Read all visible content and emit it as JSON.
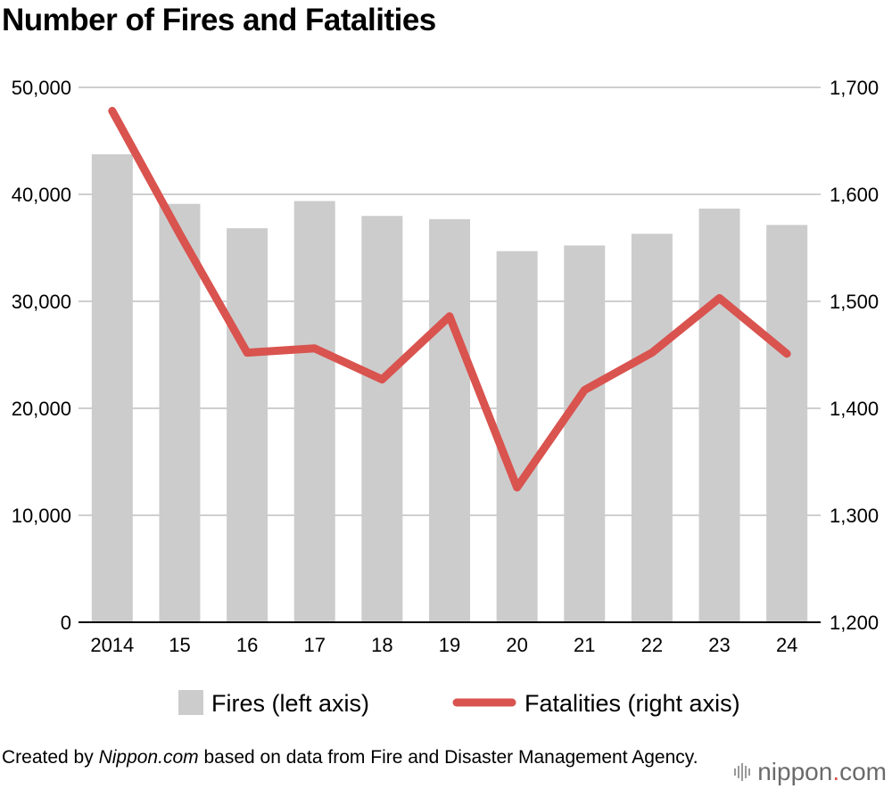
{
  "chart_data": {
    "type": "bar",
    "title": "Number of Fires and Fatalities",
    "categories": [
      "2014",
      "15",
      "16",
      "17",
      "18",
      "19",
      "20",
      "21",
      "22",
      "23",
      "24"
    ],
    "series": [
      {
        "name": "Fires (left axis)",
        "type": "bar",
        "axis": "left",
        "color": "#cccccc",
        "values": [
          43741,
          39111,
          36831,
          39373,
          37981,
          37683,
          34691,
          35222,
          36314,
          38672,
          37141
        ]
      },
      {
        "name": "Fatalities (right axis)",
        "type": "line",
        "axis": "right",
        "color": "#d9534f",
        "values": [
          1678,
          1563,
          1452,
          1456,
          1427,
          1486,
          1326,
          1417,
          1452,
          1503,
          1451
        ]
      }
    ],
    "y_left": {
      "ylim": [
        0,
        50000
      ],
      "ticks": [
        0,
        10000,
        20000,
        30000,
        40000,
        50000
      ],
      "tick_labels": [
        "0",
        "10,000",
        "20,000",
        "30,000",
        "40,000",
        "50,000"
      ]
    },
    "y_right": {
      "ylim": [
        1200,
        1700
      ],
      "ticks": [
        1200,
        1300,
        1400,
        1500,
        1600,
        1700
      ],
      "tick_labels": [
        "1,200",
        "1,300",
        "1,400",
        "1,500",
        "1,600",
        "1,700"
      ]
    },
    "grid": true,
    "legend_position": "bottom"
  },
  "source": {
    "prefix": "Created by ",
    "site": "Nippon.com",
    "suffix": " based on data from Fire and Disaster Management Agency."
  },
  "brand": {
    "name": "nippon",
    "dot": ".",
    "tld": "com",
    "accent": "#d9534f"
  }
}
